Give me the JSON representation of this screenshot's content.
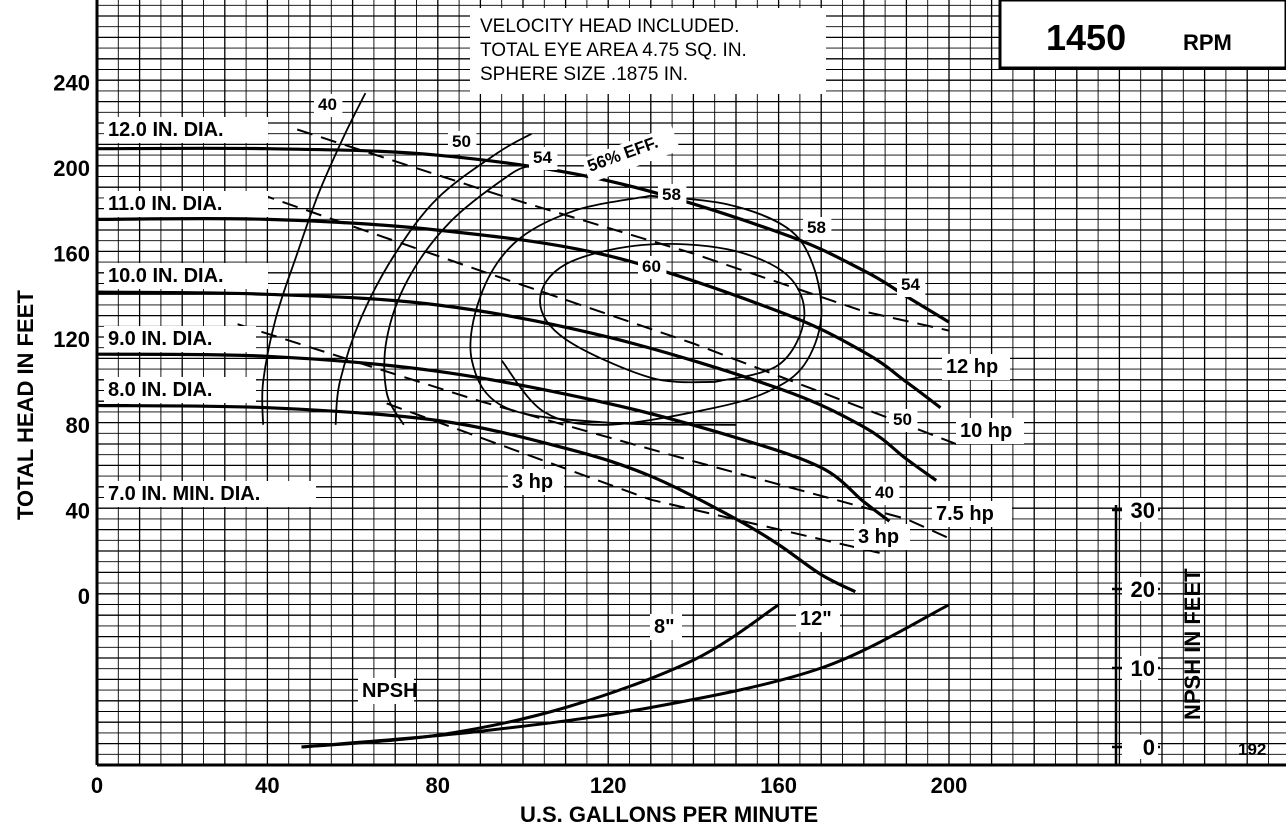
{
  "chart_data": {
    "type": "line",
    "notes": [
      "VELOCITY HEAD INCLUDED.",
      "TOTAL EYE AREA 4.75 SQ. IN.",
      "SPHERE SIZE .1875 IN."
    ],
    "speed": {
      "value": "1450",
      "unit": "RPM"
    },
    "xlabel": "U.S. GALLONS PER MINUTE",
    "ylabel": "TOTAL HEAD IN FEET",
    "y2label": "NPSH IN FEET",
    "xlim": [
      0,
      240
    ],
    "ylim": [
      -80,
      250
    ],
    "x_ticks": [
      "0",
      "40",
      "80",
      "120",
      "160",
      "200"
    ],
    "y_ticks": [
      "0",
      "40",
      "80",
      "120",
      "160",
      "200",
      "240"
    ],
    "npsh_ticks": [
      "0",
      "10",
      "20",
      "30"
    ],
    "curve_id": "192",
    "impeller_curves": [
      {
        "label": "12.0 IN. DIA.",
        "points": [
          [
            0,
            209
          ],
          [
            40,
            209
          ],
          [
            80,
            206
          ],
          [
            120,
            194
          ],
          [
            160,
            170
          ],
          [
            180,
            152
          ],
          [
            190,
            140
          ],
          [
            200,
            128
          ]
        ]
      },
      {
        "label": "11.0 IN. DIA.",
        "points": [
          [
            0,
            176
          ],
          [
            40,
            176
          ],
          [
            80,
            171
          ],
          [
            120,
            159
          ],
          [
            160,
            133
          ],
          [
            180,
            114
          ],
          [
            190,
            100
          ],
          [
            198,
            88
          ]
        ]
      },
      {
        "label": "10.0 IN. DIA.",
        "points": [
          [
            0,
            142
          ],
          [
            40,
            141
          ],
          [
            80,
            136
          ],
          [
            120,
            121
          ],
          [
            160,
            97
          ],
          [
            180,
            79
          ],
          [
            190,
            64
          ],
          [
            197,
            54
          ]
        ]
      },
      {
        "label": "9.0 IN. DIA.",
        "points": [
          [
            0,
            113
          ],
          [
            40,
            112
          ],
          [
            80,
            105
          ],
          [
            120,
            90
          ],
          [
            150,
            74
          ],
          [
            170,
            60
          ],
          [
            180,
            44
          ],
          [
            186,
            35
          ]
        ]
      },
      {
        "label": "8.0 IN. DIA.",
        "points": [
          [
            0,
            89
          ],
          [
            40,
            88
          ],
          [
            80,
            82
          ],
          [
            110,
            69
          ],
          [
            130,
            56
          ],
          [
            150,
            36
          ],
          [
            160,
            24
          ],
          [
            170,
            10
          ],
          [
            178,
            2
          ]
        ]
      },
      {
        "label": "7.0 IN. MIN. DIA.",
        "points": []
      }
    ],
    "efficiency_contours": [
      {
        "label": "40",
        "points": [
          [
            39,
            80
          ],
          [
            39,
            100
          ],
          [
            42,
            130
          ],
          [
            47,
            160
          ],
          [
            52,
            188
          ],
          [
            58,
            215
          ],
          [
            63,
            235
          ]
        ]
      },
      {
        "label": "50",
        "points": [
          [
            56,
            80
          ],
          [
            57,
            100
          ],
          [
            62,
            130
          ],
          [
            70,
            160
          ],
          [
            80,
            186
          ],
          [
            94,
            207
          ],
          [
            102,
            216
          ]
        ]
      },
      {
        "label": "54",
        "points": [
          [
            72,
            80
          ],
          [
            68,
            95
          ],
          [
            68,
            120
          ],
          [
            73,
            148
          ],
          [
            83,
            175
          ],
          [
            97,
            197
          ],
          [
            102,
            201
          ]
        ]
      },
      {
        "label": "56% EFF.",
        "points": [
          [
            150,
            80
          ],
          [
            120,
            81
          ],
          [
            96,
            88
          ],
          [
            88,
            110
          ],
          [
            90,
            140
          ],
          [
            98,
            165
          ],
          [
            112,
            180
          ],
          [
            130,
            187
          ]
        ]
      },
      {
        "label": "58",
        "points": [
          [
            130,
            187
          ],
          [
            148,
            183
          ],
          [
            162,
            172
          ],
          [
            168,
            155
          ],
          [
            170,
            130
          ],
          [
            166,
            108
          ],
          [
            158,
            96
          ],
          [
            145,
            88
          ],
          [
            120,
            80
          ],
          [
            105,
            86
          ],
          [
            95,
            110
          ]
        ]
      },
      {
        "label": "60",
        "points": [
          [
            145,
            100
          ],
          [
            160,
            108
          ],
          [
            166,
            130
          ],
          [
            162,
            150
          ],
          [
            148,
            162
          ],
          [
            128,
            164
          ],
          [
            110,
            155
          ],
          [
            104,
            138
          ],
          [
            110,
            120
          ],
          [
            130,
            102
          ],
          [
            145,
            100
          ]
        ]
      }
    ],
    "hp_lines": [
      {
        "label": "12 hp",
        "points": [
          [
            47,
            218
          ],
          [
            95,
            187
          ],
          [
            140,
            160
          ],
          [
            180,
            133
          ],
          [
            200,
            124
          ]
        ]
      },
      {
        "label": "10 hp",
        "points": [
          [
            38,
            188
          ],
          [
            90,
            152
          ],
          [
            140,
            118
          ],
          [
            190,
            80
          ],
          [
            203,
            70
          ]
        ]
      },
      {
        "label": "7.5 hp",
        "points": [
          [
            33,
            127
          ],
          [
            90,
            91
          ],
          [
            140,
            63
          ],
          [
            190,
            36
          ],
          [
            200,
            27
          ]
        ]
      },
      {
        "label": "3 hp",
        "points": [
          [
            68,
            90
          ],
          [
            130,
            45
          ],
          [
            184,
            20
          ]
        ]
      }
    ],
    "npsh_curves": [
      {
        "label": "8\"",
        "points": [
          [
            48,
            0
          ],
          [
            80,
            1.5
          ],
          [
            110,
            5
          ],
          [
            140,
            11
          ],
          [
            160,
            18
          ]
        ]
      },
      {
        "label": "12\"",
        "points": [
          [
            48,
            0
          ],
          [
            90,
            2
          ],
          [
            130,
            5
          ],
          [
            170,
            10
          ],
          [
            200,
            18
          ]
        ]
      },
      {
        "label": "NPSH",
        "points": []
      }
    ]
  }
}
